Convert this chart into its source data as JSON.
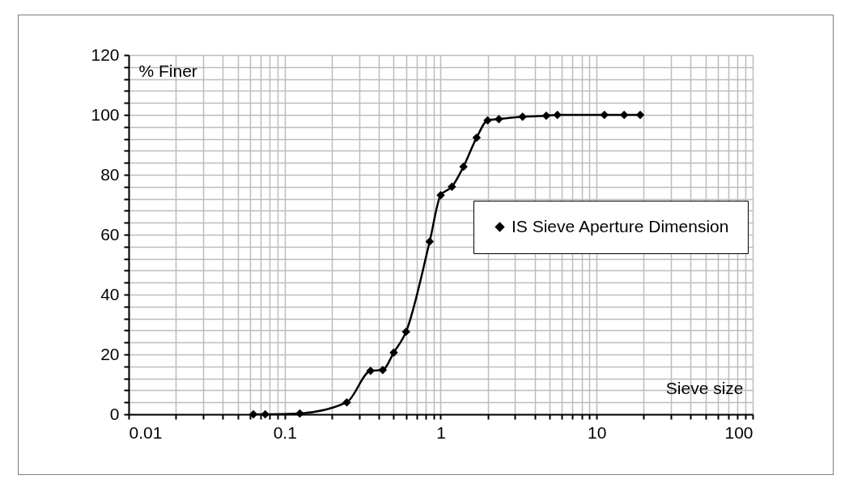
{
  "chart_data": {
    "type": "line",
    "xlabel": "Sieve size",
    "ylabel": "% Finer",
    "log": "x",
    "grid": true,
    "legend": "right",
    "marker": "diamond",
    "line_style": "solid",
    "x": [
      0.063,
      0.075,
      0.125,
      0.25,
      0.355,
      0.425,
      0.5,
      0.6,
      0.85,
      1,
      1.18,
      1.4,
      1.7,
      2,
      2.36,
      3.35,
      4.75,
      5.6,
      11.2,
      15,
      19
    ],
    "series": [
      {
        "name": "IS Sieve Aperture Dimension",
        "color": "#000000",
        "values": [
          0,
          0,
          0.3,
          4,
          14.5,
          14.8,
          20.6,
          27.6,
          57.7,
          73.2,
          76,
          82.7,
          92.4,
          98.2,
          98.6,
          99.4,
          99.7,
          100,
          100,
          100,
          100
        ]
      }
    ],
    "xlim": [
      0.01,
      100
    ],
    "xticks": [
      0.01,
      {
        "value": 0.02,
        "label": null
      },
      {
        "value": 0.03,
        "label": null
      },
      {
        "value": 0.04,
        "label": null
      },
      {
        "value": 0.05,
        "label": null
      },
      {
        "value": 0.06,
        "label": null
      },
      {
        "value": 0.07,
        "label": null
      },
      {
        "value": 0.08,
        "label": null
      },
      {
        "value": 0.09,
        "label": null
      },
      0.1,
      {
        "value": 0.2,
        "label": null
      },
      {
        "value": 0.3,
        "label": null
      },
      {
        "value": 0.4,
        "label": null
      },
      {
        "value": 0.5,
        "label": null
      },
      {
        "value": 0.6,
        "label": null
      },
      {
        "value": 0.7,
        "label": null
      },
      {
        "value": 0.8,
        "label": null
      },
      {
        "value": 0.9,
        "label": null
      },
      1,
      {
        "value": 2,
        "label": null
      },
      {
        "value": 3,
        "label": null
      },
      {
        "value": 4,
        "label": null
      },
      {
        "value": 5,
        "label": null
      },
      {
        "value": 6,
        "label": null
      },
      {
        "value": 7,
        "label": null
      },
      {
        "value": 8,
        "label": null
      },
      {
        "value": 9,
        "label": null
      },
      10,
      {
        "value": 20,
        "label": null
      },
      {
        "value": 30,
        "label": null
      },
      {
        "value": 40,
        "label": null
      },
      {
        "value": 50,
        "label": null
      },
      {
        "value": 60,
        "label": null
      },
      {
        "value": 70,
        "label": null
      },
      {
        "value": 80,
        "label": null
      },
      {
        "value": 90,
        "label": null
      },
      100
    ],
    "ylim": [
      0,
      120
    ],
    "yticks": [
      0,
      {
        "value": 4,
        "label": null
      },
      {
        "value": 8,
        "label": null
      },
      {
        "value": 12,
        "label": null
      },
      {
        "value": 16,
        "label": null
      },
      20,
      {
        "value": 24,
        "label": null
      },
      {
        "value": 28,
        "label": null
      },
      {
        "value": 32,
        "label": null
      },
      {
        "value": 36,
        "label": null
      },
      40,
      {
        "value": 44,
        "label": null
      },
      {
        "value": 48,
        "label": null
      },
      {
        "value": 52,
        "label": null
      },
      {
        "value": 56,
        "label": null
      },
      60,
      {
        "value": 64,
        "label": null
      },
      {
        "value": 68,
        "label": null
      },
      {
        "value": 72,
        "label": null
      },
      {
        "value": 76,
        "label": null
      },
      80,
      {
        "value": 84,
        "label": null
      },
      {
        "value": 88,
        "label": null
      },
      {
        "value": 92,
        "label": null
      },
      {
        "value": 96,
        "label": null
      },
      100,
      {
        "value": 104,
        "label": null
      },
      {
        "value": 108,
        "label": null
      },
      {
        "value": 112,
        "label": null
      },
      {
        "value": 116,
        "label": null
      },
      120
    ]
  }
}
